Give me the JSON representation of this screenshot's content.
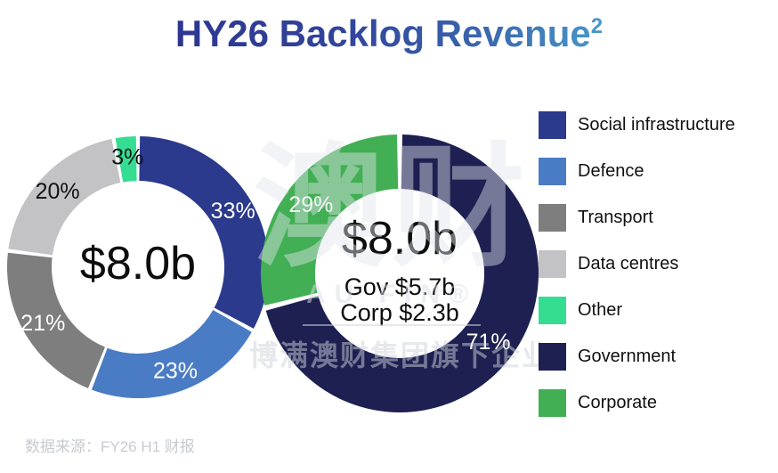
{
  "title": {
    "text": "HY26 Backlog Revenue",
    "superscript": "2"
  },
  "source_note": "数据来源：FY26 H1 财报",
  "watermark": {
    "logo_text": "澳财",
    "logo_subtext": "AU FIN®",
    "company_text": "博满澳财集团旗下企业"
  },
  "legend": {
    "items": [
      {
        "label": "Social infrastructure",
        "color": "#2b3a8c"
      },
      {
        "label": "Defence",
        "color": "#4a7cc5"
      },
      {
        "label": "Transport",
        "color": "#7e7e7e"
      },
      {
        "label": "Data centres",
        "color": "#c3c3c5"
      },
      {
        "label": "Other",
        "color": "#35dd93"
      },
      {
        "label": "Government",
        "color": "#1e2052"
      },
      {
        "label": "Corporate",
        "color": "#42af54"
      }
    ]
  },
  "chart_data": {
    "type": "pie",
    "subtype": "donut-pair",
    "title": "HY26 Backlog Revenue",
    "legend_position": "right",
    "charts": [
      {
        "name": "backlog-by-sector",
        "total_label": "$8.0b",
        "center_label": "$8.0b",
        "center_sublabels": [],
        "segments": [
          {
            "label": "Social infrastructure",
            "value_pct": 33,
            "pct_label": "33%",
            "color": "#2b3a8c",
            "pct_label_color": "#ffffff"
          },
          {
            "label": "Defence",
            "value_pct": 23,
            "pct_label": "23%",
            "color": "#4a7cc5",
            "pct_label_color": "#ffffff"
          },
          {
            "label": "Transport",
            "value_pct": 21,
            "pct_label": "21%",
            "color": "#7e7e7e",
            "pct_label_color": "#ffffff"
          },
          {
            "label": "Data centres",
            "value_pct": 20,
            "pct_label": "20%",
            "color": "#c3c3c5",
            "pct_label_color": "#111111"
          },
          {
            "label": "Other",
            "value_pct": 3,
            "pct_label": "3%",
            "color": "#35dd93",
            "pct_label_color": "#111111"
          }
        ]
      },
      {
        "name": "backlog-by-client",
        "total_label": "$8.0b",
        "center_label": "$8.0b",
        "center_sublabels": [
          "Gov $5.7b",
          "Corp $2.3b"
        ],
        "segments": [
          {
            "label": "Government",
            "value_pct": 71,
            "pct_label": "71%",
            "color": "#1e2052",
            "pct_label_color": "#ffffff",
            "value_b": 5.7
          },
          {
            "label": "Corporate",
            "value_pct": 29,
            "pct_label": "29%",
            "color": "#42af54",
            "pct_label_color": "#ffffff",
            "value_b": 2.3
          }
        ]
      }
    ]
  }
}
